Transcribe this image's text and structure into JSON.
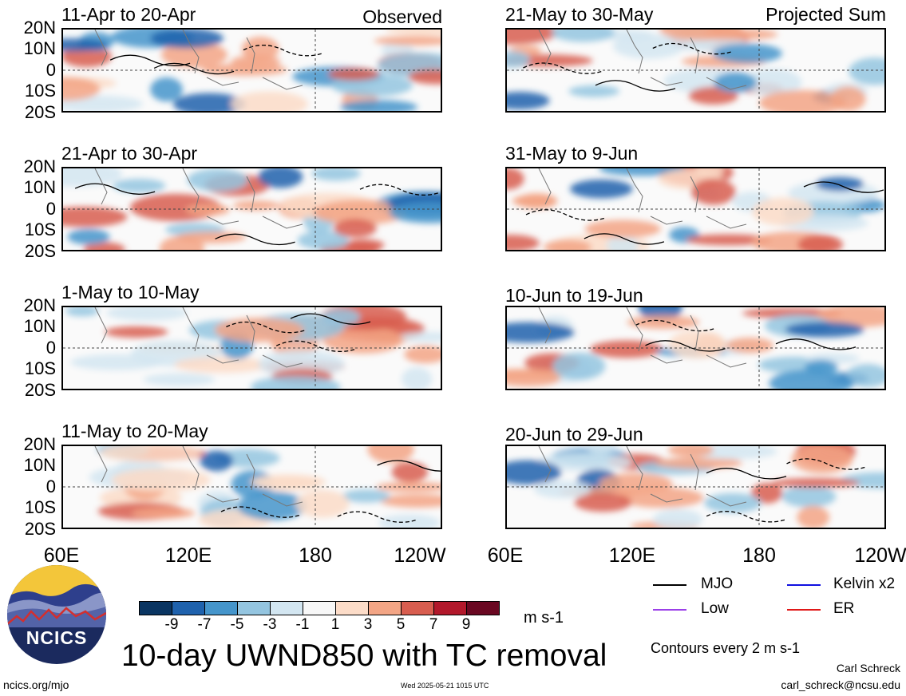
{
  "map": {
    "lat_labels": [
      "20N",
      "10N",
      "0",
      "10S",
      "20S"
    ],
    "lon_labels": [
      "60E",
      "120E",
      "180",
      "120W"
    ],
    "columns": [
      {
        "tag": "Observed",
        "panels": [
          "11-Apr to 20-Apr",
          "21-Apr to 30-Apr",
          "1-May to 10-May",
          "11-May to 20-May"
        ]
      },
      {
        "tag": "Projected Sum",
        "panels": [
          "21-May to 30-May",
          "31-May to 9-Jun",
          "10-Jun to 19-Jun",
          "20-Jun to 29-Jun"
        ]
      }
    ]
  },
  "colorbar": {
    "ticks": [
      "-9",
      "-7",
      "-5",
      "-3",
      "-1",
      "1",
      "3",
      "5",
      "7",
      "9"
    ],
    "colors": [
      "#0a3562",
      "#1f62ad",
      "#4595cb",
      "#94c5e0",
      "#d3e6f1",
      "#f7f7f7",
      "#fcdcc8",
      "#f3a585",
      "#d85d4f",
      "#b2182b",
      "#6a0822"
    ],
    "units": "m s-1"
  },
  "title": "10-day UWND850 with TC removal",
  "legend": {
    "items": [
      {
        "label": "MJO",
        "color": "#000000"
      },
      {
        "label": "Kelvin x2",
        "color": "#1010e0"
      },
      {
        "label": "Low",
        "color": "#9b40e8"
      },
      {
        "label": "ER",
        "color": "#e01818"
      }
    ],
    "contour_note": "Contours every 2 m s-1"
  },
  "credits": {
    "author": "Carl Schreck",
    "email": "carl_schreck@ncsu.edu",
    "website": "ncics.org/mjo",
    "timestamp": "Wed 2025-05-21 1015 UTC",
    "logo_text": "NCICS"
  }
}
